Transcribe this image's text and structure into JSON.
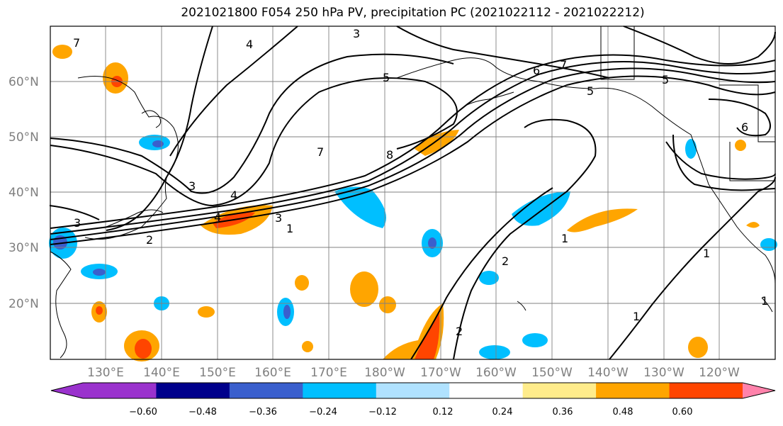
{
  "title": "2021021800 F054 250 hPa PV, precipitation PC (2021022112 - 2021022212)",
  "map": {
    "lat_labels": [
      "60°N",
      "50°N",
      "40°N",
      "30°N",
      "20°N"
    ],
    "lon_labels": [
      "130°E",
      "140°E",
      "150°E",
      "160°E",
      "170°E",
      "180°W",
      "170°W",
      "160°W",
      "150°W",
      "140°W",
      "130°W",
      "120°W"
    ],
    "contour_labels": [
      "7",
      "4",
      "3",
      "5",
      "7",
      "6",
      "7",
      "5",
      "4",
      "8",
      "6",
      "5",
      "3",
      "4",
      "3",
      "2",
      "1",
      "1",
      "1",
      "2",
      "1",
      "1",
      "3",
      "2"
    ]
  },
  "colorbar": {
    "ticks": [
      "−0.60",
      "−0.48",
      "−0.36",
      "−0.24",
      "−0.12",
      "0.12",
      "0.24",
      "0.36",
      "0.48",
      "0.60"
    ],
    "colors": [
      "#9a32cd",
      "#00008b",
      "#3a5fcd",
      "#00bfff",
      "#b0e2ff",
      "#ffffff",
      "#ffec8b",
      "#ffa500",
      "#ff4500",
      "#b22222",
      "#ff82ab"
    ]
  }
}
